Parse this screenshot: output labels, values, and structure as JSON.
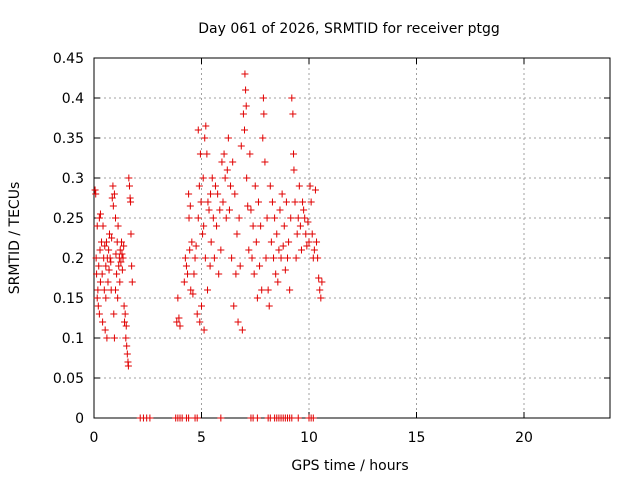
{
  "chart_data": {
    "type": "scatter",
    "title": "Day 061 of 2026, SRMTID for receiver ptgg",
    "xlabel": "GPS time / hours",
    "ylabel": "SRMTID / TECUs",
    "xlim": [
      0,
      24
    ],
    "ylim": [
      0,
      0.45
    ],
    "grid": true,
    "marker": "+",
    "series_color": "#e00000",
    "x_ticks": [
      {
        "value": 0,
        "label": "0"
      },
      {
        "value": 5,
        "label": "5"
      },
      {
        "value": 10,
        "label": "10"
      },
      {
        "value": 15,
        "label": "15"
      },
      {
        "value": 20,
        "label": "20"
      }
    ],
    "y_ticks": [
      {
        "value": 0,
        "label": "0"
      },
      {
        "value": 0.05,
        "label": "0.05"
      },
      {
        "value": 0.1,
        "label": "0.1"
      },
      {
        "value": 0.15,
        "label": "0.15"
      },
      {
        "value": 0.2,
        "label": "0.2"
      },
      {
        "value": 0.25,
        "label": "0.25"
      },
      {
        "value": 0.3,
        "label": "0.3"
      },
      {
        "value": 0.35,
        "label": "0.35"
      },
      {
        "value": 0.4,
        "label": "0.4"
      },
      {
        "value": 0.45,
        "label": "0.45"
      }
    ],
    "series": [
      {
        "name": "SRMTID",
        "points": [
          [
            0.05,
            0.285
          ],
          [
            0.08,
            0.28
          ],
          [
            0.1,
            0.2
          ],
          [
            0.12,
            0.18
          ],
          [
            0.15,
            0.15
          ],
          [
            0.15,
            0.24
          ],
          [
            0.18,
            0.16
          ],
          [
            0.2,
            0.14
          ],
          [
            0.22,
            0.19
          ],
          [
            0.25,
            0.25
          ],
          [
            0.25,
            0.13
          ],
          [
            0.28,
            0.21
          ],
          [
            0.3,
            0.17
          ],
          [
            0.3,
            0.255
          ],
          [
            0.35,
            0.22
          ],
          [
            0.38,
            0.18
          ],
          [
            0.4,
            0.12
          ],
          [
            0.42,
            0.24
          ],
          [
            0.45,
            0.2
          ],
          [
            0.48,
            0.16
          ],
          [
            0.5,
            0.215
          ],
          [
            0.52,
            0.11
          ],
          [
            0.55,
            0.19
          ],
          [
            0.55,
            0.15
          ],
          [
            0.58,
            0.22
          ],
          [
            0.6,
            0.1
          ],
          [
            0.62,
            0.2
          ],
          [
            0.65,
            0.17
          ],
          [
            0.68,
            0.21
          ],
          [
            0.7,
            0.185
          ],
          [
            0.72,
            0.23
          ],
          [
            0.75,
            0.2
          ],
          [
            0.78,
            0.195
          ],
          [
            0.8,
            0.16
          ],
          [
            0.82,
            0.225
          ],
          [
            0.85,
            0.275
          ],
          [
            0.88,
            0.29
          ],
          [
            0.9,
            0.265
          ],
          [
            0.92,
            0.13
          ],
          [
            0.95,
            0.28
          ],
          [
            0.95,
            0.1
          ],
          [
            1.0,
            0.25
          ],
          [
            1.0,
            0.16
          ],
          [
            1.02,
            0.205
          ],
          [
            1.05,
            0.18
          ],
          [
            1.08,
            0.22
          ],
          [
            1.1,
            0.15
          ],
          [
            1.12,
            0.24
          ],
          [
            1.15,
            0.19
          ],
          [
            1.18,
            0.2
          ],
          [
            1.2,
            0.17
          ],
          [
            1.22,
            0.21
          ],
          [
            1.25,
            0.195
          ],
          [
            1.28,
            0.22
          ],
          [
            1.3,
            0.205
          ],
          [
            1.32,
            0.185
          ],
          [
            1.35,
            0.2
          ],
          [
            1.38,
            0.215
          ],
          [
            1.4,
            0.14
          ],
          [
            1.42,
            0.12
          ],
          [
            1.45,
            0.13
          ],
          [
            1.48,
            0.1
          ],
          [
            1.5,
            0.115
          ],
          [
            1.52,
            0.09
          ],
          [
            1.55,
            0.08
          ],
          [
            1.58,
            0.07
          ],
          [
            1.6,
            0.065
          ],
          [
            1.62,
            0.3
          ],
          [
            1.65,
            0.29
          ],
          [
            1.68,
            0.275
          ],
          [
            1.7,
            0.27
          ],
          [
            1.72,
            0.23
          ],
          [
            1.75,
            0.19
          ],
          [
            1.78,
            0.17
          ],
          [
            3.85,
            0.12
          ],
          [
            3.9,
            0.15
          ],
          [
            3.95,
            0.125
          ],
          [
            4.0,
            0.115
          ],
          [
            4.2,
            0.17
          ],
          [
            4.25,
            0.2
          ],
          [
            4.3,
            0.19
          ],
          [
            4.35,
            0.18
          ],
          [
            4.4,
            0.28
          ],
          [
            4.42,
            0.25
          ],
          [
            4.45,
            0.21
          ],
          [
            4.48,
            0.265
          ],
          [
            4.5,
            0.16
          ],
          [
            4.55,
            0.22
          ],
          [
            4.6,
            0.155
          ],
          [
            4.65,
            0.18
          ],
          [
            4.7,
            0.2
          ],
          [
            4.75,
            0.215
          ],
          [
            4.8,
            0.13
          ],
          [
            4.85,
            0.25
          ],
          [
            4.85,
            0.36
          ],
          [
            4.9,
            0.29
          ],
          [
            4.92,
            0.12
          ],
          [
            4.95,
            0.33
          ],
          [
            4.98,
            0.27
          ],
          [
            5.0,
            0.14
          ],
          [
            5.05,
            0.23
          ],
          [
            5.08,
            0.3
          ],
          [
            5.1,
            0.24
          ],
          [
            5.12,
            0.11
          ],
          [
            5.15,
            0.35
          ],
          [
            5.18,
            0.2
          ],
          [
            5.2,
            0.365
          ],
          [
            5.25,
            0.33
          ],
          [
            5.28,
            0.16
          ],
          [
            5.3,
            0.27
          ],
          [
            5.35,
            0.26
          ],
          [
            5.4,
            0.19
          ],
          [
            5.42,
            0.28
          ],
          [
            5.45,
            0.22
          ],
          [
            5.5,
            0.3
          ],
          [
            5.55,
            0.25
          ],
          [
            5.6,
            0.2
          ],
          [
            5.65,
            0.29
          ],
          [
            5.7,
            0.24
          ],
          [
            5.75,
            0.28
          ],
          [
            5.8,
            0.18
          ],
          [
            5.85,
            0.26
          ],
          [
            5.9,
            0.21
          ],
          [
            5.95,
            0.32
          ],
          [
            6.0,
            0.27
          ],
          [
            6.05,
            0.33
          ],
          [
            6.1,
            0.3
          ],
          [
            6.15,
            0.25
          ],
          [
            6.2,
            0.31
          ],
          [
            6.25,
            0.35
          ],
          [
            6.3,
            0.26
          ],
          [
            6.35,
            0.29
          ],
          [
            6.4,
            0.2
          ],
          [
            6.45,
            0.32
          ],
          [
            6.5,
            0.14
          ],
          [
            6.55,
            0.28
          ],
          [
            6.6,
            0.18
          ],
          [
            6.65,
            0.23
          ],
          [
            6.7,
            0.12
          ],
          [
            6.75,
            0.25
          ],
          [
            6.8,
            0.19
          ],
          [
            6.85,
            0.34
          ],
          [
            6.9,
            0.11
          ],
          [
            6.95,
            0.38
          ],
          [
            7.0,
            0.36
          ],
          [
            7.02,
            0.43
          ],
          [
            7.05,
            0.41
          ],
          [
            7.08,
            0.39
          ],
          [
            7.1,
            0.3
          ],
          [
            7.15,
            0.265
          ],
          [
            7.2,
            0.21
          ],
          [
            7.25,
            0.33
          ],
          [
            7.3,
            0.26
          ],
          [
            7.35,
            0.2
          ],
          [
            7.4,
            0.24
          ],
          [
            7.45,
            0.18
          ],
          [
            7.5,
            0.29
          ],
          [
            7.55,
            0.22
          ],
          [
            7.6,
            0.15
          ],
          [
            7.65,
            0.27
          ],
          [
            7.7,
            0.19
          ],
          [
            7.75,
            0.24
          ],
          [
            7.8,
            0.16
          ],
          [
            7.85,
            0.35
          ],
          [
            7.88,
            0.4
          ],
          [
            7.9,
            0.38
          ],
          [
            7.95,
            0.32
          ],
          [
            8.0,
            0.2
          ],
          [
            8.05,
            0.25
          ],
          [
            8.1,
            0.16
          ],
          [
            8.15,
            0.14
          ],
          [
            8.2,
            0.29
          ],
          [
            8.25,
            0.22
          ],
          [
            8.3,
            0.27
          ],
          [
            8.35,
            0.2
          ],
          [
            8.4,
            0.25
          ],
          [
            8.45,
            0.18
          ],
          [
            8.5,
            0.23
          ],
          [
            8.55,
            0.17
          ],
          [
            8.6,
            0.21
          ],
          [
            8.65,
            0.26
          ],
          [
            8.7,
            0.2
          ],
          [
            8.75,
            0.28
          ],
          [
            8.8,
            0.215
          ],
          [
            8.85,
            0.24
          ],
          [
            8.9,
            0.185
          ],
          [
            8.95,
            0.27
          ],
          [
            9.0,
            0.2
          ],
          [
            9.05,
            0.22
          ],
          [
            9.1,
            0.16
          ],
          [
            9.15,
            0.25
          ],
          [
            9.2,
            0.4
          ],
          [
            9.25,
            0.38
          ],
          [
            9.28,
            0.33
          ],
          [
            9.3,
            0.31
          ],
          [
            9.35,
            0.27
          ],
          [
            9.4,
            0.2
          ],
          [
            9.45,
            0.23
          ],
          [
            9.5,
            0.25
          ],
          [
            9.55,
            0.29
          ],
          [
            9.6,
            0.24
          ],
          [
            9.65,
            0.21
          ],
          [
            9.7,
            0.27
          ],
          [
            9.75,
            0.26
          ],
          [
            9.8,
            0.25
          ],
          [
            9.85,
            0.23
          ],
          [
            9.9,
            0.215
          ],
          [
            9.95,
            0.245
          ],
          [
            10.0,
            0.22
          ],
          [
            10.05,
            0.29
          ],
          [
            10.1,
            0.27
          ],
          [
            10.15,
            0.23
          ],
          [
            10.2,
            0.2
          ],
          [
            10.25,
            0.21
          ],
          [
            10.3,
            0.285
          ],
          [
            10.35,
            0.22
          ],
          [
            10.4,
            0.2
          ],
          [
            10.45,
            0.175
          ],
          [
            10.5,
            0.16
          ],
          [
            10.55,
            0.15
          ],
          [
            10.6,
            0.17
          ],
          [
            2.15,
            0
          ],
          [
            2.3,
            0
          ],
          [
            2.45,
            0
          ],
          [
            2.6,
            0
          ],
          [
            3.8,
            0
          ],
          [
            3.9,
            0
          ],
          [
            4.0,
            0
          ],
          [
            4.1,
            0
          ],
          [
            4.3,
            0
          ],
          [
            4.4,
            0
          ],
          [
            4.7,
            0
          ],
          [
            4.8,
            0
          ],
          [
            5.9,
            0
          ],
          [
            7.3,
            0
          ],
          [
            7.4,
            0
          ],
          [
            7.6,
            0
          ],
          [
            8.1,
            0
          ],
          [
            8.2,
            0
          ],
          [
            8.4,
            0
          ],
          [
            8.5,
            0
          ],
          [
            8.6,
            0
          ],
          [
            8.7,
            0
          ],
          [
            8.8,
            0
          ],
          [
            8.9,
            0
          ],
          [
            9.0,
            0
          ],
          [
            9.1,
            0
          ],
          [
            9.2,
            0
          ],
          [
            9.5,
            0
          ],
          [
            10.0,
            0
          ],
          [
            10.1,
            0
          ],
          [
            10.2,
            0
          ]
        ]
      }
    ]
  }
}
